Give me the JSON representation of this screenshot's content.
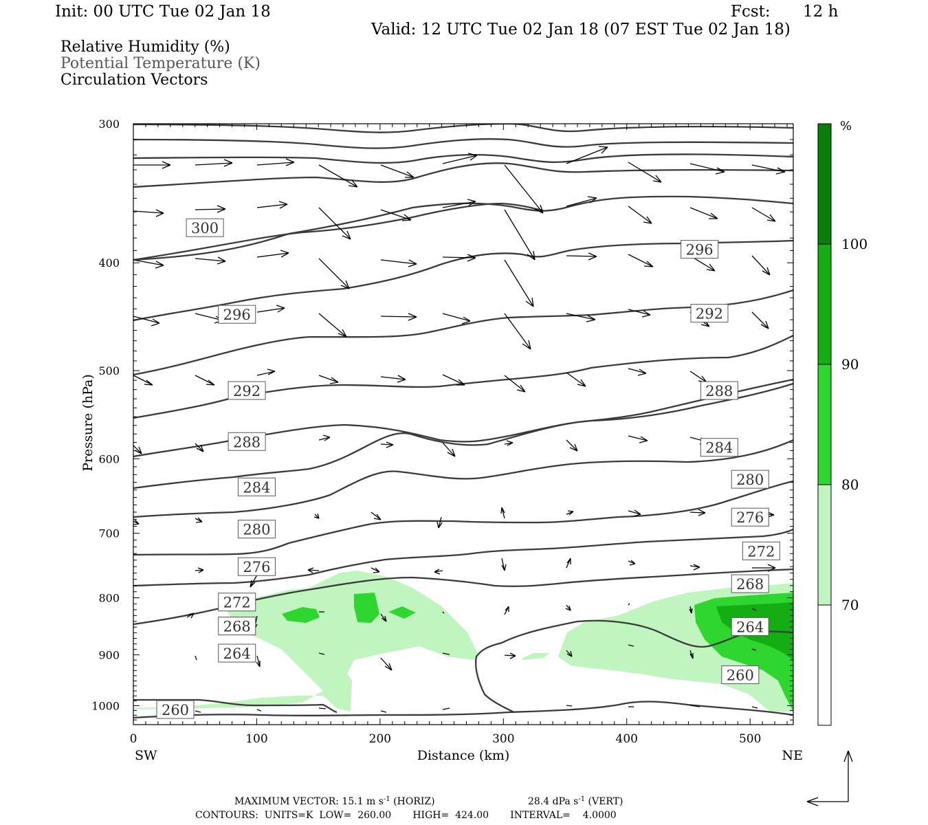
{
  "header": {
    "init": "Init: 00 UTC Tue 02 Jan 18",
    "fcst_label": "Fcst:",
    "fcst_value": "12 h",
    "valid": "Valid: 12 UTC Tue 02 Jan 18 (07 EST Tue 02 Jan 18)"
  },
  "legend": {
    "rh": "Relative Humidity (%)",
    "theta": "Potential Temperature (K)",
    "vectors": "Circulation Vectors"
  },
  "footer": {
    "max_vector": "MAXIMUM VECTOR:  15.1 m s",
    "horiz_suffix": " (HORIZ)",
    "vert_value": "28.4 dPa s",
    "vert_suffix": " (VERT)",
    "exp": "-1",
    "contours": "CONTOURS:  UNITS=K  LOW=  260.00       HIGH=  424.00       INTERVAL=    4.0000"
  },
  "colors": {
    "rh_70": "#c0f5c0",
    "rh_80": "#30d630",
    "rh_90": "#14ae14",
    "rh_100": "#0a7d0a",
    "contour": "#3a3a3a",
    "vector": "#000000"
  },
  "chart_data": {
    "type": "cross-section",
    "xlabel": "Distance (km)",
    "ylabel": "Pressure (hPa)",
    "xlim": [
      0,
      535
    ],
    "ylim": [
      1040,
      300
    ],
    "y_scale": "log",
    "x_ticks": [
      "0",
      "100",
      "200",
      "300",
      "400",
      "500"
    ],
    "y_ticks": [
      "300",
      "400",
      "500",
      "600",
      "700",
      "800",
      "900",
      "1000"
    ],
    "x_end_labels": {
      "left": "SW",
      "right": "NE"
    },
    "colorbar": {
      "unit": "%",
      "ticks": [
        "70",
        "80",
        "90",
        "100"
      ],
      "levels": [
        70,
        80,
        90,
        100
      ]
    },
    "theta_labels": [
      {
        "v": "300",
        "x": 58,
        "p": 372
      },
      {
        "v": "296",
        "x": 84,
        "p": 445
      },
      {
        "v": "292",
        "x": 92,
        "p": 521
      },
      {
        "v": "288",
        "x": 92,
        "p": 579
      },
      {
        "v": "284",
        "x": 100,
        "p": 636
      },
      {
        "v": "280",
        "x": 100,
        "p": 694
      },
      {
        "v": "276",
        "x": 100,
        "p": 750
      },
      {
        "v": "272",
        "x": 84,
        "p": 807
      },
      {
        "v": "268",
        "x": 84,
        "p": 848
      },
      {
        "v": "264",
        "x": 84,
        "p": 897
      },
      {
        "v": "260",
        "x": 34,
        "p": 1008
      },
      {
        "v": "296",
        "x": 459,
        "p": 389
      },
      {
        "v": "292",
        "x": 467,
        "p": 444
      },
      {
        "v": "288",
        "x": 475,
        "p": 521
      },
      {
        "v": "284",
        "x": 475,
        "p": 586
      },
      {
        "v": "280",
        "x": 500,
        "p": 626
      },
      {
        "v": "276",
        "x": 500,
        "p": 677
      },
      {
        "v": "272",
        "x": 509,
        "p": 726
      },
      {
        "v": "268",
        "x": 500,
        "p": 777
      },
      {
        "v": "264",
        "x": 500,
        "p": 849
      },
      {
        "v": "260",
        "x": 492,
        "p": 938
      }
    ]
  }
}
